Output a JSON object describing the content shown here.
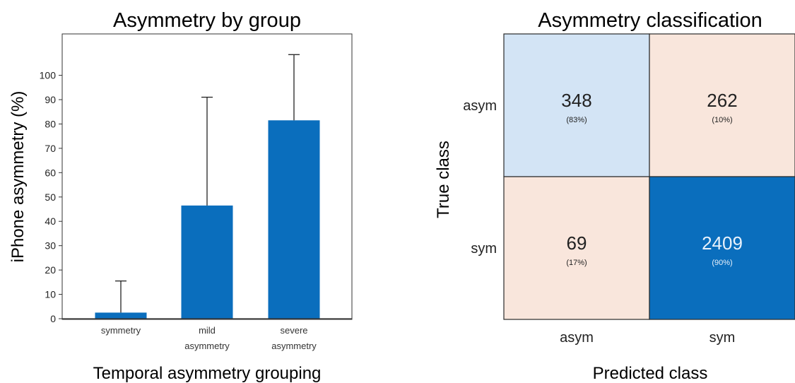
{
  "chart_data": [
    {
      "type": "bar",
      "title": "Asymmetry by group",
      "xlabel": "Temporal asymmetry grouping",
      "ylabel": "iPhone asymmetry (%)",
      "categories": [
        [
          "symmetry"
        ],
        [
          "mild",
          "asymmetry"
        ],
        [
          "severe",
          "asymmetry"
        ]
      ],
      "values": [
        2.5,
        46.5,
        81.5
      ],
      "error_upper": [
        15.5,
        91,
        108.5
      ],
      "ylim": [
        0,
        117
      ],
      "yticks": [
        0,
        10,
        20,
        30,
        40,
        50,
        60,
        70,
        80,
        90,
        100
      ],
      "color": "#0a6ebd"
    },
    {
      "type": "heatmap",
      "title": "Asymmetry classification",
      "xlabel": "Predicted class",
      "ylabel": "True class",
      "x_categories": [
        "asym",
        "sym"
      ],
      "y_categories": [
        "asym",
        "sym"
      ],
      "cells": [
        [
          {
            "count": "348",
            "pct": "(83%)",
            "color": "#d3e4f5",
            "text_color": "#222222"
          },
          {
            "count": "262",
            "pct": "(10%)",
            "color": "#f9e6dc",
            "text_color": "#222222"
          }
        ],
        [
          {
            "count": "69",
            "pct": "(17%)",
            "color": "#f9e6dc",
            "text_color": "#222222"
          },
          {
            "count": "2409",
            "pct": "(90%)",
            "color": "#0a6ebd",
            "text_color": "#e8f1fb"
          }
        ]
      ]
    }
  ]
}
